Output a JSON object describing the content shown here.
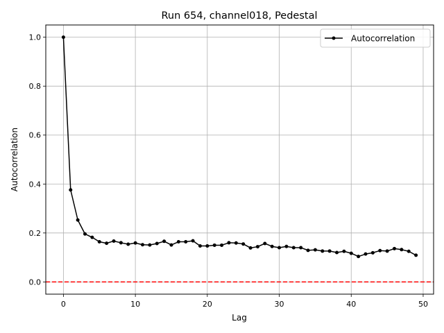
{
  "chart_data": {
    "type": "line",
    "title": "Run 654, channel018, Pedestal",
    "xlabel": "Lag",
    "ylabel": "Autocorrelation",
    "xlim": [
      -2.45,
      51.45
    ],
    "ylim": [
      -0.05,
      1.05
    ],
    "xticks": [
      0,
      10,
      20,
      30,
      40,
      50
    ],
    "yticks": [
      0.0,
      0.2,
      0.4,
      0.6,
      0.8,
      1.0
    ],
    "xtick_labels": [
      "0",
      "10",
      "20",
      "30",
      "40",
      "50"
    ],
    "ytick_labels": [
      "0.0",
      "0.2",
      "0.4",
      "0.6",
      "0.8",
      "1.0"
    ],
    "grid": true,
    "legend_position": "top-right",
    "series": [
      {
        "name": "Autocorrelation",
        "color": "#000000",
        "marker": "circle",
        "x": [
          0,
          1,
          2,
          3,
          4,
          5,
          6,
          7,
          8,
          9,
          10,
          11,
          12,
          13,
          14,
          15,
          16,
          17,
          18,
          19,
          20,
          21,
          22,
          23,
          24,
          25,
          26,
          27,
          28,
          29,
          30,
          31,
          32,
          33,
          34,
          35,
          36,
          37,
          38,
          39,
          40,
          41,
          42,
          43,
          44,
          45,
          46,
          47,
          48,
          49
        ],
        "values": [
          1.0,
          0.376,
          0.253,
          0.196,
          0.182,
          0.164,
          0.158,
          0.167,
          0.16,
          0.154,
          0.159,
          0.152,
          0.151,
          0.157,
          0.166,
          0.151,
          0.164,
          0.164,
          0.168,
          0.147,
          0.147,
          0.15,
          0.15,
          0.16,
          0.159,
          0.155,
          0.139,
          0.144,
          0.157,
          0.145,
          0.14,
          0.145,
          0.14,
          0.14,
          0.129,
          0.131,
          0.126,
          0.126,
          0.12,
          0.125,
          0.117,
          0.104,
          0.114,
          0.119,
          0.128,
          0.126,
          0.136,
          0.132,
          0.125,
          0.109
        ]
      }
    ],
    "reference_line": {
      "y": 0.0,
      "color": "#ff0000",
      "style": "dashed"
    }
  }
}
